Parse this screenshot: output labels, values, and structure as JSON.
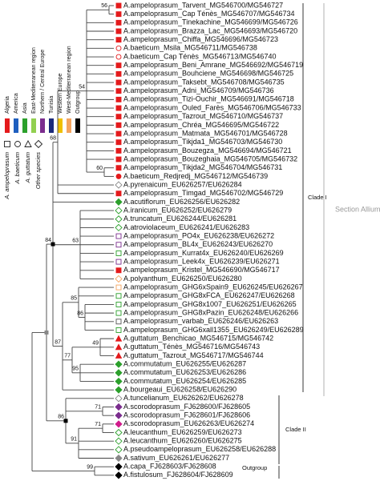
{
  "legend": {
    "regions": [
      {
        "label": "Algeria",
        "color": "#e41a1c"
      },
      {
        "label": "America",
        "color": "#1f5fbf"
      },
      {
        "label": "Asia",
        "color": "#2ca02c"
      },
      {
        "label": "East-Mediterranean region",
        "color": "#92d050"
      },
      {
        "label": "Northern / Central Europe",
        "color": "#7b2d8e"
      },
      {
        "label": "Tunisia",
        "color": "#1a2a7a"
      },
      {
        "label": "Western Europe",
        "color": "#f0c000"
      },
      {
        "label": "West-Mediterranean region",
        "color": "#f4a460"
      },
      {
        "label": "Outgroup",
        "color": "#000000"
      }
    ],
    "species": [
      {
        "label": "A. ampeloprasum",
        "shape": "square"
      },
      {
        "label": "A. baeticum",
        "shape": "circle"
      },
      {
        "label": "A. guttatum",
        "shape": "triangle"
      },
      {
        "label": "Other species",
        "shape": "diamond"
      }
    ]
  },
  "leaves": [
    {
      "label": "A.ampeloprasum_Tarvent_MG546700/MG546727",
      "marker": "square",
      "color": "#e41a1c",
      "filled": true
    },
    {
      "label": "A.ampeloprasum_Cap Ténès_MG546707/MG546734",
      "marker": "square",
      "color": "#e41a1c",
      "filled": true
    },
    {
      "label": "A.ampeloprasum_Tinekachine_MG546699/MG546726",
      "marker": "square",
      "color": "#e41a1c",
      "filled": true
    },
    {
      "label": "A.ampeloprasum_Brazza_Lac_MG546693/MG546720",
      "marker": "square",
      "color": "#e41a1c",
      "filled": true
    },
    {
      "label": "A.ampeloprasum_Chiffa_MG546696/MG546723",
      "marker": "square",
      "color": "#e41a1c",
      "filled": true
    },
    {
      "label": "A.baeticum_Msila_MG546711/MG546738",
      "marker": "circle",
      "color": "#e41a1c",
      "filled": false
    },
    {
      "label": "A.baeticum_Cap Ténès_MG546713/MG546740",
      "marker": "circle",
      "color": "#e41a1c",
      "filled": false
    },
    {
      "label": "A.ampeloprasum_Beni_Amrane_MG546692/MG546719",
      "marker": "square",
      "color": "#e41a1c",
      "filled": true
    },
    {
      "label": "A.ampeloprasum_Bouhciene_MG546698/MG546725",
      "marker": "square",
      "color": "#e41a1c",
      "filled": true
    },
    {
      "label": "A.ampeloprasum_Taksebt_MG546708/MG546735",
      "marker": "square",
      "color": "#e41a1c",
      "filled": true
    },
    {
      "label": "A.ampeloprasum_Adni_MG546709/MG546736",
      "marker": "square",
      "color": "#e41a1c",
      "filled": true
    },
    {
      "label": "A.ampeloprasum_Tizi-Ouchir_MG546691/MG546718",
      "marker": "square",
      "color": "#e41a1c",
      "filled": true
    },
    {
      "label": "A.ampeloprasum_Ouled_Farès_MG546706/MG546733",
      "marker": "square",
      "color": "#e41a1c",
      "filled": true
    },
    {
      "label": "A.ampeloprasum_Tazrout_MG546710/MG546737",
      "marker": "square",
      "color": "#e41a1c",
      "filled": true
    },
    {
      "label": "A.ampeloprasum_Chréa_MG546695/MG546722",
      "marker": "square",
      "color": "#e41a1c",
      "filled": true
    },
    {
      "label": "A.ampeloprasum_Matmata_MG546701/MG546728",
      "marker": "square",
      "color": "#e41a1c",
      "filled": true
    },
    {
      "label": "A.ampeloprasum_Tikjda1_MG546703/MG546730",
      "marker": "square",
      "color": "#e41a1c",
      "filled": true
    },
    {
      "label": "A.ampeloprasum_Bouzegza_MG546694/MG546721",
      "marker": "square",
      "color": "#e41a1c",
      "filled": true
    },
    {
      "label": "A.ampeloprasum_Bouzeghaia_MG546705/MG546732",
      "marker": "square",
      "color": "#e41a1c",
      "filled": true
    },
    {
      "label": "A.ampeloprasum_Tikjda2_MG546704/MG546731",
      "marker": "square",
      "color": "#e41a1c",
      "filled": true
    },
    {
      "label": "A.baeticum_Redjredj_MG546712/MG546739",
      "marker": "circle",
      "color": "#e41a1c",
      "filled": true
    },
    {
      "label": "A.pyrenaicum_EU626257/EU626284",
      "marker": "diamond",
      "color": "#888888",
      "filled": false
    },
    {
      "label": "A.ampeloprasum_Timgad_MG546702/MG546729",
      "marker": "square",
      "color": "#e41a1c",
      "filled": true
    },
    {
      "label": "A.acutiflorum_EU626256/EU626282",
      "marker": "diamond",
      "color": "#2ca02c",
      "filled": true
    },
    {
      "label": "A.iranicum_EU626252/EU626279",
      "marker": "diamond",
      "color": "#2ca02c",
      "filled": false
    },
    {
      "label": "A.truncatum_EU626244/EU626281",
      "marker": "diamond",
      "color": "#2ca02c",
      "filled": false
    },
    {
      "label": "A.atroviolaceum_EU626241/EU626283",
      "marker": "diamond",
      "color": "#2ca02c",
      "filled": false
    },
    {
      "label": "A.ampeloprasum_PO4x_EU626238/EU626272",
      "marker": "square",
      "color": "#7b2d8e",
      "filled": false
    },
    {
      "label": "A.ampeloprasum_BL4x_EU626243/EU626270",
      "marker": "square",
      "color": "#7b2d8e",
      "filled": false
    },
    {
      "label": "A.ampeloprasum_Kurrat4x_EU626240/EU626269",
      "marker": "square",
      "color": "#2ca02c",
      "filled": false
    },
    {
      "label": "A.ampeloprasum_Leek4x_EU626239/EU626271",
      "marker": "square",
      "color": "#7b2d8e",
      "filled": false
    },
    {
      "label": "A.ampeloprasum_Kristel_MG546690/MG546717",
      "marker": "square",
      "color": "#e41a1c",
      "filled": true
    },
    {
      "label": "A.polyanthum_EU626250/EU626280",
      "marker": "diamond",
      "color": "#f4a460",
      "filled": false
    },
    {
      "label": "A.ampeloprasum_GHG6xSpain9_EU626245/EU626267",
      "marker": "square",
      "color": "#f4a460",
      "filled": false
    },
    {
      "label": "A.ampeloprasum_GHG8xFCA_EU626247/EU626268",
      "marker": "square",
      "color": "#2ca02c",
      "filled": false
    },
    {
      "label": "A.ampeloprasum_GHG8x1007_EU626251/EU626265",
      "marker": "square",
      "color": "#2ca02c",
      "filled": false
    },
    {
      "label": "A.ampeloprasum_GHG8xPazin_EU626248/EU626266",
      "marker": "square",
      "color": "#2ca02c",
      "filled": false
    },
    {
      "label": "A.ampeloprasum_varbab_EU626246/EU626263",
      "marker": "square",
      "color": "#555555",
      "filled": false
    },
    {
      "label": "A.ampeloprasum_GHG6xall1355_EU626249/EU626289",
      "marker": "square",
      "color": "#2ca02c",
      "filled": false
    },
    {
      "label": "A.guttatum_Benchicao_MG546715/MG546742",
      "marker": "triangle",
      "color": "#e41a1c",
      "filled": true
    },
    {
      "label": "A.guttatum_Ténès_MG546716/MG546743",
      "marker": "triangle",
      "color": "#e41a1c",
      "filled": true
    },
    {
      "label": "A.guttatum_Tazrout_MG546717/MG546744",
      "marker": "triangle",
      "color": "#e41a1c",
      "filled": true
    },
    {
      "label": "A.commutatum_EU626255/EU626287",
      "marker": "diamond",
      "color": "#2ca02c",
      "filled": true
    },
    {
      "label": "A.commutatum_EU626253/EU626286",
      "marker": "diamond",
      "color": "#2ca02c",
      "filled": true
    },
    {
      "label": "A.commutatum_EU626254/EU626285",
      "marker": "diamond",
      "color": "#2ca02c",
      "filled": true
    },
    {
      "label": "A.bourgeaui_EU626258/EU626290",
      "marker": "diamond",
      "color": "#2ca02c",
      "filled": true
    },
    {
      "label": "A.tuncelianum_EU626262/EU626278",
      "marker": "diamond",
      "color": "#888888",
      "filled": false
    },
    {
      "label": "A.scorodoprasum_FJ628600/FJ628605",
      "marker": "diamond",
      "color": "#7b2d8e",
      "filled": true
    },
    {
      "label": "A.scorodoprasum_FJ628601/FJ628606",
      "marker": "diamond",
      "color": "#7b2d8e",
      "filled": true
    },
    {
      "label": "A.scorodoprasum_EU626263/EU626274",
      "marker": "diamond",
      "color": "#d01c8b",
      "filled": true
    },
    {
      "label": "A.leucanthum_EU626259/EU626273",
      "marker": "diamond",
      "color": "#2ca02c",
      "filled": false
    },
    {
      "label": "A.leucanthum_EU626260/EU626275",
      "marker": "diamond",
      "color": "#2ca02c",
      "filled": false
    },
    {
      "label": "A.pseudoampeloprasum_EU626258/EU626288",
      "marker": "diamond",
      "color": "#2ca02c",
      "filled": false
    },
    {
      "label": "A.sativum_EU626261/EU626277",
      "marker": "diamond",
      "color": "#888888",
      "filled": true
    },
    {
      "label": "A.capa_FJ628603/FJ628608",
      "marker": "diamond",
      "color": "#000000",
      "filled": true
    },
    {
      "label": "A.fistulosum_FJ628604/FJ628609",
      "marker": "diamond",
      "color": "#000000",
      "filled": true
    }
  ],
  "bootstrap": [
    56,
    54,
    68,
    60,
    84,
    63,
    85,
    86,
    87,
    49,
    77,
    95,
    71,
    86,
    71,
    91,
    99
  ],
  "clades": {
    "clade_1": "Clade I",
    "clade_2": "Clade II",
    "outgroup": "Outgroup",
    "section": "Section Allium"
  }
}
